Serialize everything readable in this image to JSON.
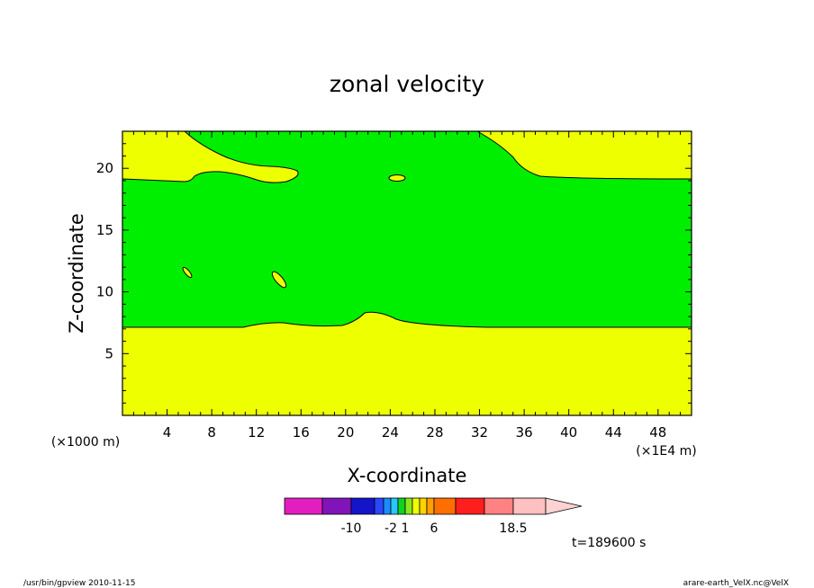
{
  "chart_data": {
    "type": "contour",
    "title": "zonal velocity",
    "xlabel": "X-coordinate",
    "ylabel": "Z-coordinate",
    "x_scale_note": "(×1E4 m)",
    "y_scale_note": "(×1000 m)",
    "xlim": [
      0,
      51
    ],
    "ylim": [
      0,
      23
    ],
    "x_ticks": [
      4,
      8,
      12,
      16,
      20,
      24,
      28,
      32,
      36,
      40,
      44,
      48
    ],
    "y_ticks": [
      5,
      10,
      15,
      20
    ],
    "regions": [
      {
        "name": "upper band",
        "color": "#00ee00"
      },
      {
        "name": "background",
        "color": "#eeff00"
      }
    ],
    "colorbar": {
      "colors": [
        "#e21ec1",
        "#8014b8",
        "#1414c8",
        "#2a48ff",
        "#1a8cff",
        "#24c8ff",
        "#10d220",
        "#8ce61e",
        "#eeff00",
        "#ffd200",
        "#ffa000",
        "#ff6e00",
        "#ff1e1e",
        "#ff8282",
        "#ffc0c0"
      ],
      "tick_labels": [
        "-10",
        "-2",
        "1",
        "6",
        "18.5"
      ],
      "arrow_color": "#ffd2d2"
    },
    "time_label": "t=189600 s"
  },
  "footer": {
    "left": "/usr/bin/gpview  2010-11-15",
    "right": "arare-earth_VelX.nc@VelX"
  }
}
